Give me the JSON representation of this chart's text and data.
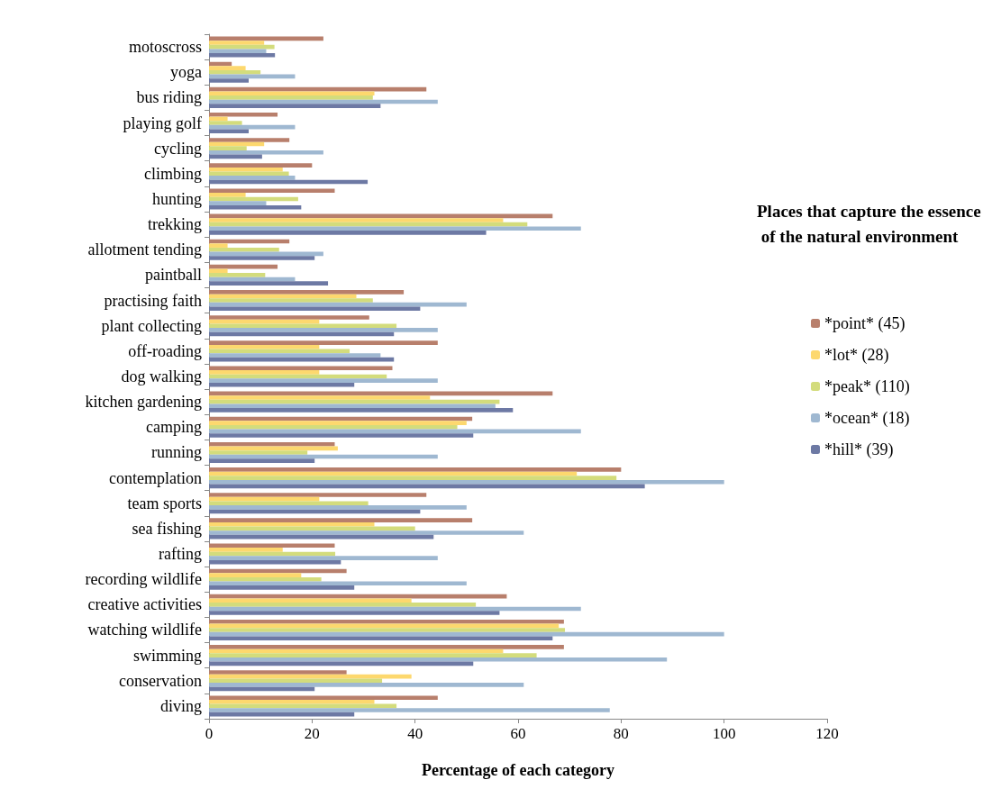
{
  "chart_data": {
    "type": "bar",
    "orientation": "horizontal",
    "xlabel": "Percentage of each category",
    "legend_title": "Places that capture the essence of the natural environment",
    "legend": "right",
    "grid": false,
    "categories": [
      "motoscross",
      "yoga",
      "bus riding",
      "playing golf",
      "cycling",
      "climbing",
      "hunting",
      "trekking",
      "allotment tending",
      "paintball",
      "practising faith",
      "plant collecting",
      "off-roading",
      "dog walking",
      "kitchen gardening",
      "camping",
      "running",
      "contemplation",
      "team sports",
      "sea fishing",
      "rafting",
      "recording wildlife",
      "creative activities",
      "watching wildlife",
      "swimming",
      "conservation",
      "diving"
    ],
    "xlim": [
      0,
      120
    ],
    "xticks": [
      0,
      20,
      40,
      60,
      80,
      100,
      120
    ],
    "series": [
      {
        "name": "*point* (45)",
        "color": "#b87f6c",
        "values": [
          22.2,
          4.4,
          42.2,
          13.3,
          15.6,
          20,
          24.4,
          66.7,
          15.6,
          13.3,
          37.8,
          31.1,
          44.4,
          35.6,
          66.7,
          51.1,
          24.4,
          80,
          42.2,
          51.1,
          24.4,
          26.7,
          57.8,
          68.9,
          68.9,
          26.7,
          44.4
        ]
      },
      {
        "name": "*lot* (28)",
        "color": "#fdd86e",
        "values": [
          10.7,
          7.1,
          32.1,
          3.6,
          10.7,
          14.3,
          7.1,
          57.1,
          3.6,
          3.6,
          28.6,
          21.4,
          21.4,
          21.4,
          42.9,
          50,
          25,
          71.4,
          21.4,
          32.1,
          14.3,
          17.9,
          39.3,
          67.9,
          57.1,
          39.3,
          32.1
        ]
      },
      {
        "name": "*peak* (110)",
        "color": "#d3dc7c",
        "values": [
          12.7,
          10,
          31.8,
          6.4,
          7.3,
          15.5,
          17.3,
          61.8,
          13.6,
          10.9,
          31.8,
          36.4,
          27.3,
          34.5,
          56.4,
          48.2,
          19.1,
          79.1,
          30.9,
          40,
          24.5,
          21.8,
          51.8,
          69.1,
          63.6,
          33.6,
          36.4
        ]
      },
      {
        "name": "*ocean* (18)",
        "color": "#9fb8d1",
        "values": [
          11.1,
          16.7,
          44.4,
          16.7,
          22.2,
          16.7,
          11.1,
          72.2,
          22.2,
          16.7,
          50,
          44.4,
          33.3,
          44.4,
          55.6,
          72.2,
          44.4,
          100,
          50,
          61.1,
          44.4,
          50,
          72.2,
          100,
          88.9,
          61.1,
          77.8
        ]
      },
      {
        "name": "*hill* (39)",
        "color": "#6d79a4",
        "values": [
          12.8,
          7.7,
          33.3,
          7.7,
          10.3,
          30.8,
          17.9,
          53.8,
          20.5,
          23.1,
          41,
          35.9,
          35.9,
          28.2,
          59,
          51.3,
          20.5,
          84.6,
          41,
          43.6,
          25.6,
          28.2,
          56.4,
          66.7,
          51.3,
          20.5,
          28.2
        ]
      }
    ]
  }
}
